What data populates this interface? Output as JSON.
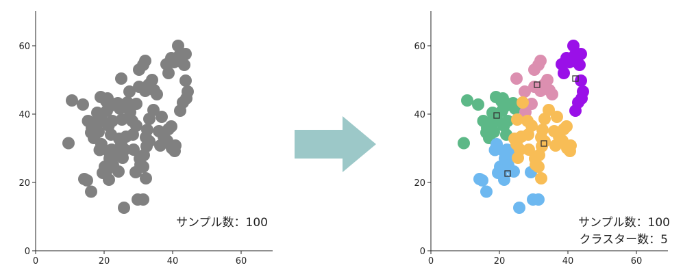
{
  "chart_data": [
    {
      "type": "scatter",
      "title": "",
      "xlabel": "",
      "ylabel": "",
      "xlim": [
        0,
        70
      ],
      "ylim": [
        0,
        70
      ],
      "x_ticks": [
        "0",
        "20",
        "40",
        "60"
      ],
      "y_ticks": [
        "0",
        "20",
        "40",
        "60"
      ],
      "grid": false,
      "point_color": "#808080",
      "annotation": "サンプル数：100",
      "points": [
        [
          9.6,
          31.5
        ],
        [
          10.6,
          44.0
        ],
        [
          13.8,
          42.8
        ],
        [
          14.2,
          21.0
        ],
        [
          15.0,
          20.6
        ],
        [
          16.2,
          17.3
        ],
        [
          15.3,
          38.0
        ],
        [
          16.4,
          36.0
        ],
        [
          16.2,
          34.6
        ],
        [
          17.0,
          33.0
        ],
        [
          17.8,
          38.0
        ],
        [
          18.0,
          40.4
        ],
        [
          18.4,
          34.8
        ],
        [
          18.7,
          29.5
        ],
        [
          19.2,
          31.2
        ],
        [
          19.0,
          45.0
        ],
        [
          19.6,
          38.0
        ],
        [
          20.6,
          43.8
        ],
        [
          21.0,
          44.6
        ],
        [
          20.8,
          41.0
        ],
        [
          21.3,
          36.6
        ],
        [
          21.8,
          42.4
        ],
        [
          22.4,
          38.0
        ],
        [
          22.0,
          34.0
        ],
        [
          21.2,
          29.2
        ],
        [
          20.2,
          24.6
        ],
        [
          20.8,
          23.6
        ],
        [
          21.6,
          27.0
        ],
        [
          22.6,
          25.0
        ],
        [
          19.6,
          22.8
        ],
        [
          21.4,
          20.8
        ],
        [
          22.2,
          29.6
        ],
        [
          23.4,
          43.0
        ],
        [
          24.0,
          43.2
        ],
        [
          24.6,
          41.6
        ],
        [
          25.2,
          38.4
        ],
        [
          24.4,
          32.8
        ],
        [
          26.4,
          33.4
        ],
        [
          25.0,
          31.2
        ],
        [
          23.6,
          28.0
        ],
        [
          25.4,
          27.2
        ],
        [
          24.2,
          23.2
        ],
        [
          26.0,
          29.6
        ],
        [
          26.8,
          43.4
        ],
        [
          27.6,
          40.6
        ],
        [
          28.2,
          38.0
        ],
        [
          28.4,
          34.0
        ],
        [
          29.4,
          36.6
        ],
        [
          28.6,
          29.6
        ],
        [
          30.4,
          27.0
        ],
        [
          30.6,
          25.2
        ],
        [
          29.2,
          23.0
        ],
        [
          31.4,
          24.6
        ],
        [
          32.2,
          21.2
        ],
        [
          31.6,
          28.0
        ],
        [
          32.2,
          33.2
        ],
        [
          32.6,
          35.4
        ],
        [
          33.2,
          32.0
        ],
        [
          32.4,
          30.6
        ],
        [
          33.2,
          38.6
        ],
        [
          25.0,
          50.4
        ],
        [
          27.4,
          46.6
        ],
        [
          29.4,
          43.0
        ],
        [
          30.2,
          48.0
        ],
        [
          30.2,
          53.0
        ],
        [
          31.4,
          54.4
        ],
        [
          32.0,
          55.6
        ],
        [
          32.0,
          46.8
        ],
        [
          33.0,
          48.6
        ],
        [
          34.0,
          50.0
        ],
        [
          34.6,
          47.0
        ],
        [
          35.4,
          45.8
        ],
        [
          34.4,
          41.2
        ],
        [
          36.4,
          30.8
        ],
        [
          36.0,
          35.0
        ],
        [
          36.8,
          39.2
        ],
        [
          37.4,
          33.4
        ],
        [
          38.8,
          35.6
        ],
        [
          38.4,
          32.2
        ],
        [
          39.8,
          30.0
        ],
        [
          40.6,
          29.2
        ],
        [
          40.8,
          30.8
        ],
        [
          39.6,
          36.4
        ],
        [
          38.2,
          54.6
        ],
        [
          38.8,
          52.0
        ],
        [
          39.6,
          56.4
        ],
        [
          40.4,
          55.2
        ],
        [
          41.6,
          60.0
        ],
        [
          42.0,
          57.2
        ],
        [
          42.4,
          55.4
        ],
        [
          43.8,
          57.6
        ],
        [
          43.4,
          54.4
        ],
        [
          43.8,
          49.8
        ],
        [
          44.4,
          46.6
        ],
        [
          44.0,
          44.6
        ],
        [
          43.0,
          43.4
        ],
        [
          42.2,
          41.0
        ],
        [
          31.4,
          15.0
        ],
        [
          29.8,
          15.0
        ],
        [
          25.8,
          12.6
        ]
      ]
    },
    {
      "type": "scatter",
      "title": "",
      "xlabel": "",
      "ylabel": "",
      "xlim": [
        0,
        70
      ],
      "ylim": [
        0,
        70
      ],
      "x_ticks": [
        "0",
        "20",
        "40",
        "60"
      ],
      "y_ticks": [
        "0",
        "20",
        "40",
        "60"
      ],
      "grid": false,
      "annotation_line1": "サンプル数：100",
      "annotation_line2": "クラスター数：5",
      "centroids": [
        {
          "x": 19.2,
          "y": 39.6,
          "cluster": "green"
        },
        {
          "x": 22.4,
          "y": 22.6,
          "cluster": "blue"
        },
        {
          "x": 31.0,
          "y": 48.6,
          "cluster": "pink"
        },
        {
          "x": 33.0,
          "y": 31.4,
          "cluster": "orange"
        },
        {
          "x": 42.2,
          "y": 50.4,
          "cluster": "purple"
        }
      ],
      "series": [
        {
          "color": "#5cb887",
          "points": [
            [
              9.6,
              31.5
            ],
            [
              10.6,
              44.0
            ],
            [
              13.8,
              42.8
            ],
            [
              15.3,
              38.0
            ],
            [
              16.4,
              36.0
            ],
            [
              16.2,
              34.6
            ],
            [
              17.0,
              33.0
            ],
            [
              17.8,
              38.0
            ],
            [
              18.0,
              40.4
            ],
            [
              18.4,
              34.8
            ],
            [
              19.0,
              45.0
            ],
            [
              19.6,
              38.0
            ],
            [
              20.6,
              43.8
            ],
            [
              21.0,
              44.6
            ],
            [
              20.8,
              41.0
            ],
            [
              21.3,
              36.6
            ],
            [
              21.8,
              42.4
            ],
            [
              22.4,
              38.0
            ],
            [
              22.0,
              34.0
            ],
            [
              23.4,
              43.0
            ],
            [
              24.0,
              43.2
            ],
            [
              24.6,
              41.6
            ]
          ]
        },
        {
          "color": "#6db8f0",
          "points": [
            [
              14.2,
              21.0
            ],
            [
              15.0,
              20.6
            ],
            [
              16.2,
              17.3
            ],
            [
              18.7,
              29.5
            ],
            [
              19.2,
              31.2
            ],
            [
              21.2,
              29.2
            ],
            [
              20.2,
              24.6
            ],
            [
              20.8,
              23.6
            ],
            [
              21.6,
              27.0
            ],
            [
              22.6,
              25.0
            ],
            [
              19.6,
              22.8
            ],
            [
              21.4,
              20.8
            ],
            [
              22.2,
              29.6
            ],
            [
              23.6,
              28.0
            ],
            [
              24.2,
              23.2
            ],
            [
              29.2,
              23.0
            ],
            [
              29.8,
              15.0
            ],
            [
              31.4,
              15.0
            ],
            [
              25.8,
              12.6
            ]
          ]
        },
        {
          "color": "#dc8fb0",
          "points": [
            [
              25.0,
              50.4
            ],
            [
              27.4,
              46.6
            ],
            [
              29.4,
              43.0
            ],
            [
              30.2,
              48.0
            ],
            [
              30.2,
              53.0
            ],
            [
              31.4,
              54.4
            ],
            [
              32.0,
              55.6
            ],
            [
              32.0,
              46.8
            ],
            [
              33.0,
              48.6
            ],
            [
              34.0,
              50.0
            ],
            [
              34.6,
              47.0
            ],
            [
              35.4,
              45.8
            ],
            [
              27.6,
              40.6
            ]
          ]
        },
        {
          "color": "#f8bd56",
          "points": [
            [
              25.2,
              38.4
            ],
            [
              24.4,
              32.8
            ],
            [
              26.4,
              33.4
            ],
            [
              25.0,
              31.2
            ],
            [
              25.4,
              27.2
            ],
            [
              26.0,
              29.6
            ],
            [
              26.8,
              43.4
            ],
            [
              28.2,
              38.0
            ],
            [
              28.4,
              34.0
            ],
            [
              29.4,
              36.6
            ],
            [
              28.6,
              29.6
            ],
            [
              30.4,
              27.0
            ],
            [
              30.6,
              25.2
            ],
            [
              31.4,
              24.6
            ],
            [
              32.2,
              21.2
            ],
            [
              31.6,
              28.0
            ],
            [
              32.2,
              33.2
            ],
            [
              32.6,
              35.4
            ],
            [
              33.2,
              32.0
            ],
            [
              32.4,
              30.6
            ],
            [
              33.2,
              38.6
            ],
            [
              34.4,
              41.2
            ],
            [
              36.4,
              30.8
            ],
            [
              36.0,
              35.0
            ],
            [
              36.8,
              39.2
            ],
            [
              37.4,
              33.4
            ],
            [
              38.8,
              35.6
            ],
            [
              38.4,
              32.2
            ],
            [
              39.8,
              30.0
            ],
            [
              40.6,
              29.2
            ],
            [
              40.8,
              30.8
            ],
            [
              39.6,
              36.4
            ]
          ]
        },
        {
          "color": "#9a10e8",
          "points": [
            [
              38.2,
              54.6
            ],
            [
              38.8,
              52.0
            ],
            [
              39.6,
              56.4
            ],
            [
              40.4,
              55.2
            ],
            [
              41.6,
              60.0
            ],
            [
              42.0,
              57.2
            ],
            [
              42.4,
              55.4
            ],
            [
              43.8,
              57.6
            ],
            [
              43.4,
              54.4
            ],
            [
              43.8,
              49.8
            ],
            [
              44.4,
              46.6
            ],
            [
              44.0,
              44.6
            ],
            [
              43.0,
              43.4
            ],
            [
              42.2,
              41.0
            ]
          ]
        }
      ]
    }
  ],
  "arrow": {
    "color": "#9cc8c8"
  }
}
